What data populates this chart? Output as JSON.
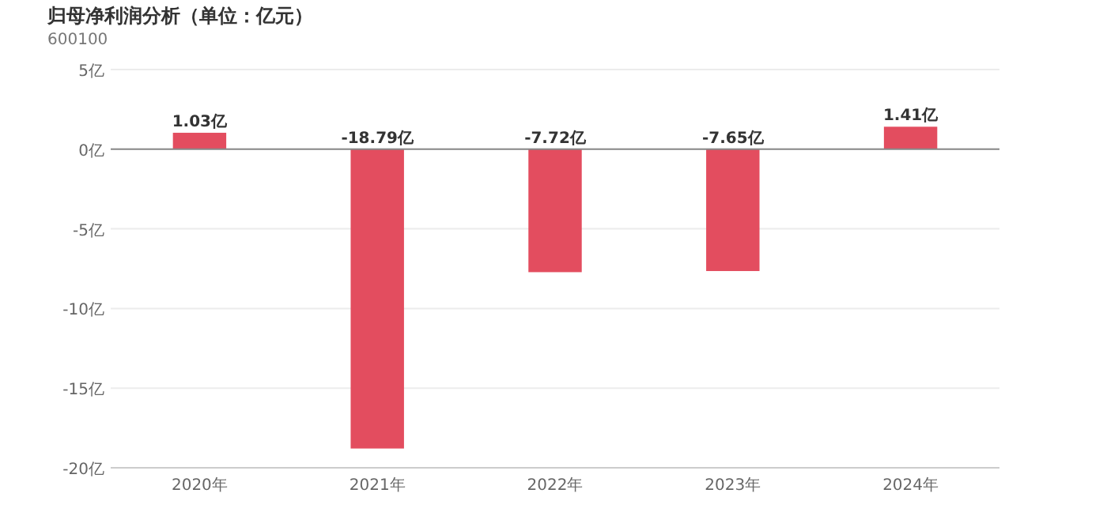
{
  "chart_data": {
    "type": "bar",
    "title": "归母净利润分析（单位：亿元）",
    "subtitle": "600100",
    "categories": [
      "2020年",
      "2021年",
      "2022年",
      "2023年",
      "2024年"
    ],
    "values": [
      1.03,
      -18.79,
      -7.72,
      -7.65,
      1.41
    ],
    "value_labels": [
      "1.03亿",
      "-18.79亿",
      "-7.72亿",
      "-7.65亿",
      "1.41亿"
    ],
    "color": "#e34d5f",
    "ylim": [
      -20,
      5
    ],
    "yticks": [
      {
        "value": 5,
        "label": "5亿"
      },
      {
        "value": 0,
        "label": "0亿"
      },
      {
        "value": -5,
        "label": "-5亿"
      },
      {
        "value": -10,
        "label": "-10亿"
      },
      {
        "value": -15,
        "label": "-15亿"
      },
      {
        "value": -20,
        "label": "-20亿"
      }
    ],
    "grid": "y"
  }
}
